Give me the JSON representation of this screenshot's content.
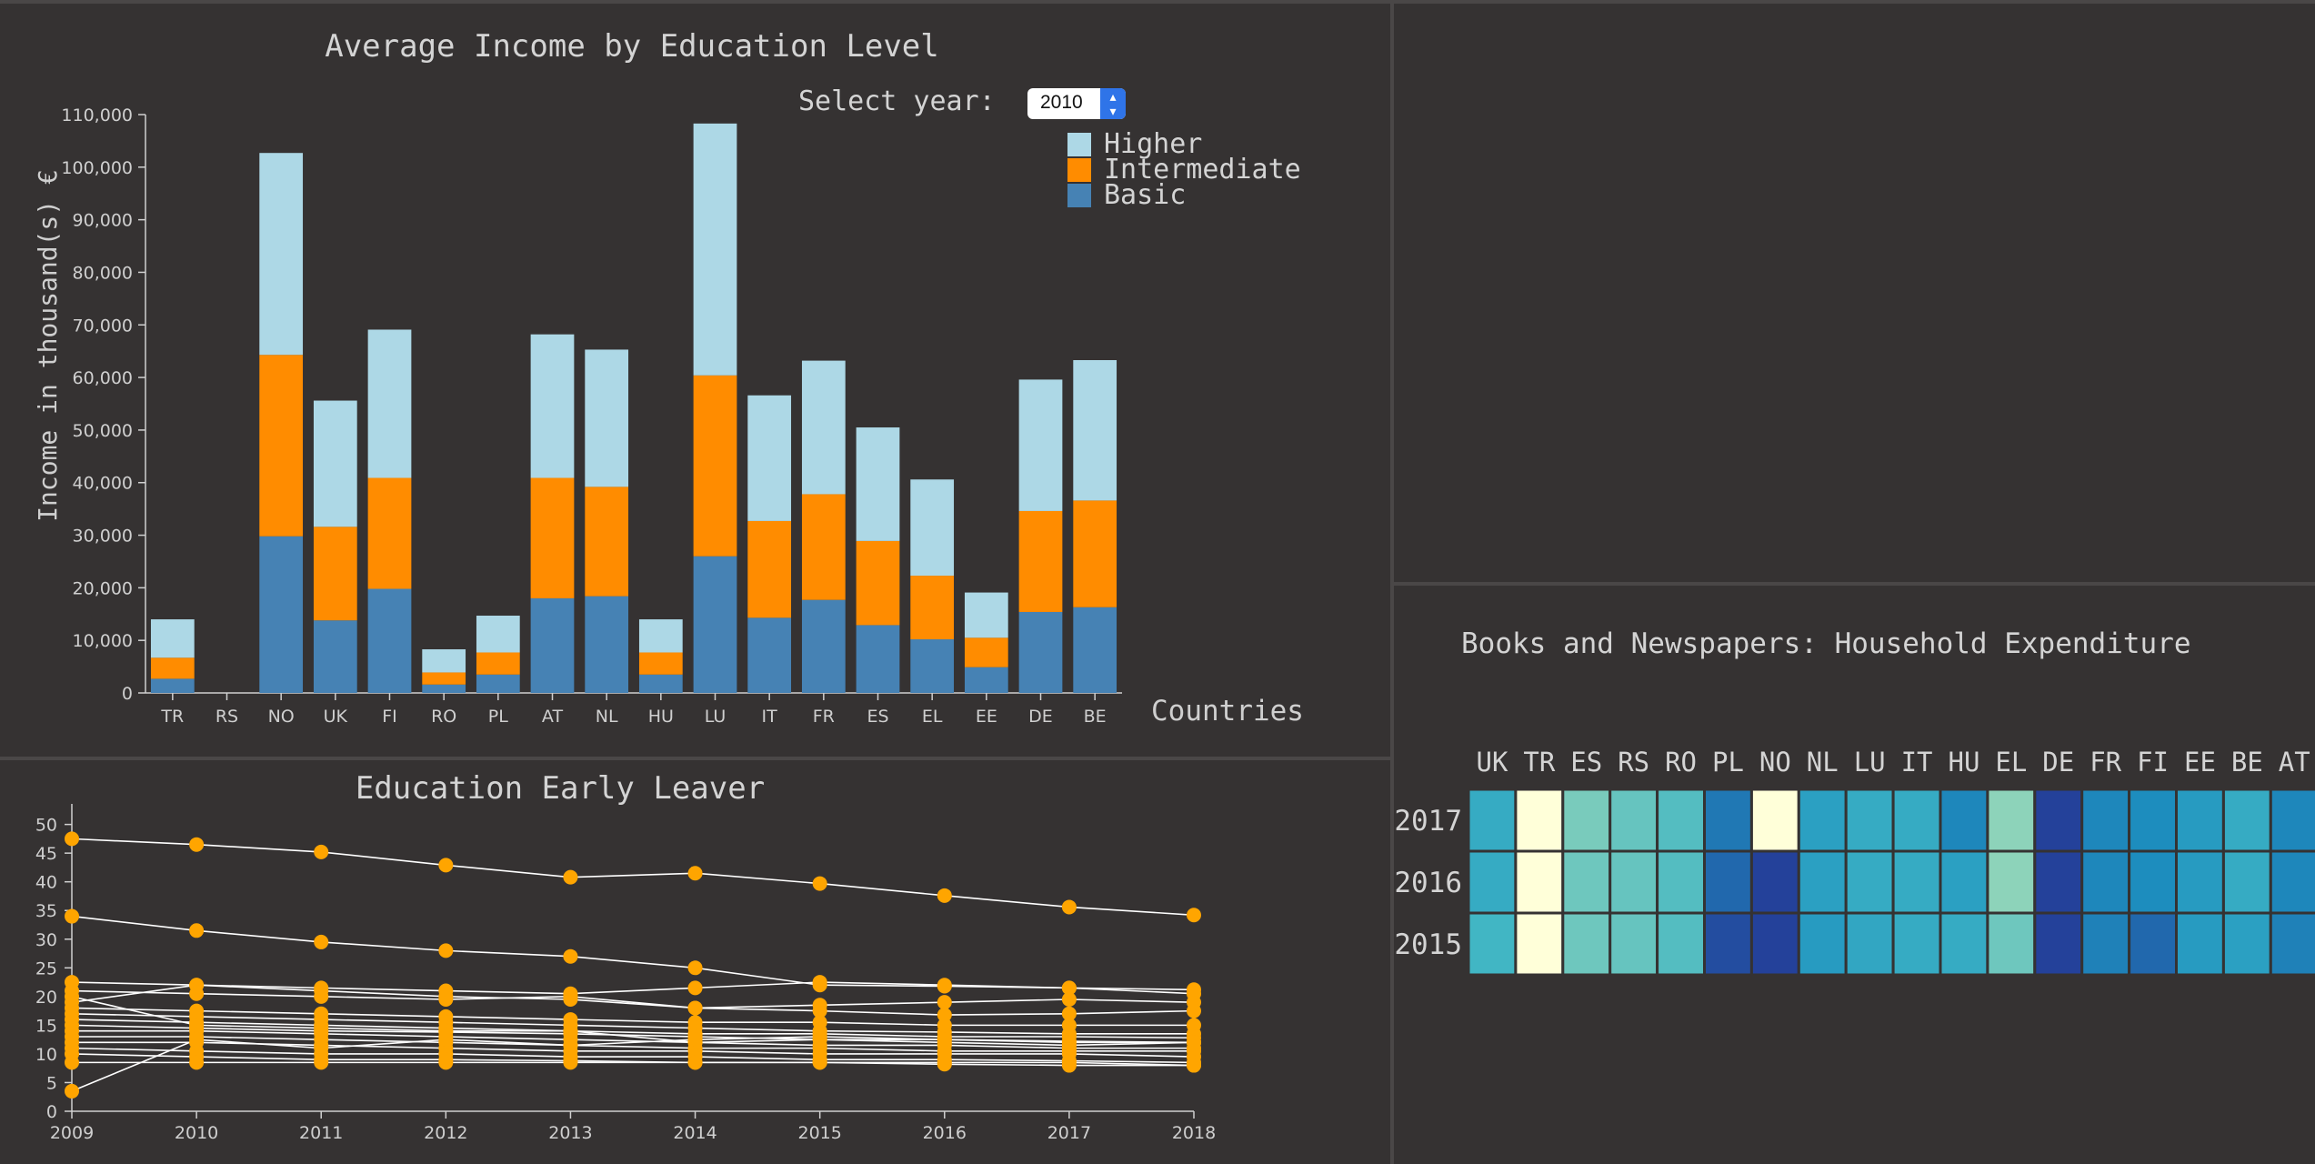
{
  "income_panel": {
    "select_label": "Select year:",
    "selected_year": "2010"
  },
  "early_panel": {},
  "books_panel": {},
  "colors": {
    "higher": "#add8e6",
    "intermediate": "#ff8c00",
    "basic": "#4682b4",
    "line": "#ffffff",
    "dot": "#ffa500"
  },
  "chart_data": [
    {
      "type": "bar",
      "stacked": true,
      "title": "Average Income by Education Level",
      "xlabel": "Countries",
      "ylabel": "Income in thousand(s) €",
      "ylim": [
        0,
        110000
      ],
      "yticks": [
        0,
        10000,
        20000,
        30000,
        40000,
        50000,
        60000,
        70000,
        80000,
        90000,
        100000,
        110000
      ],
      "ytick_labels": [
        "0",
        "10,000",
        "20,000",
        "30,000",
        "40,000",
        "50,000",
        "60,000",
        "70,000",
        "80,000",
        "90,000",
        "100,000",
        "110,000"
      ],
      "legend_position": "top-right",
      "categories": [
        "TR",
        "RS",
        "NO",
        "UK",
        "FI",
        "RO",
        "PL",
        "AT",
        "NL",
        "HU",
        "LU",
        "IT",
        "FR",
        "ES",
        "EL",
        "EE",
        "DE",
        "BE"
      ],
      "series": [
        {
          "name": "Basic",
          "values": [
            2700,
            0,
            29800,
            13800,
            19800,
            1600,
            3500,
            18000,
            18400,
            3500,
            26000,
            14300,
            17700,
            12900,
            10200,
            4900,
            15400,
            16300
          ]
        },
        {
          "name": "Intermediate",
          "values": [
            4000,
            0,
            34500,
            17800,
            21100,
            2300,
            4200,
            22900,
            20800,
            4200,
            34400,
            18400,
            20100,
            16000,
            12100,
            5600,
            19200,
            20300
          ]
        },
        {
          "name": "Higher",
          "values": [
            7300,
            0,
            38400,
            24000,
            28200,
            4400,
            7000,
            27300,
            26100,
            6300,
            47900,
            23900,
            25400,
            21600,
            18300,
            8600,
            25000,
            26700
          ]
        }
      ]
    },
    {
      "type": "line",
      "title": "Education Early Leaver",
      "xlabel": "",
      "ylabel": "",
      "ylim": [
        0,
        52
      ],
      "yticks": [
        0,
        5,
        10,
        15,
        20,
        25,
        30,
        35,
        40,
        45,
        50
      ],
      "x": [
        2009,
        2010,
        2011,
        2012,
        2013,
        2014,
        2015,
        2016,
        2017,
        2018
      ],
      "series": [
        {
          "values": [
            47.5,
            46.5,
            45.2,
            42.9,
            40.8,
            41.5,
            39.7,
            37.6,
            35.6,
            34.2
          ]
        },
        {
          "values": [
            34.0,
            31.5,
            29.5,
            28.0,
            27.0,
            25.0,
            22.0,
            21.8,
            21.5,
            21.2
          ]
        },
        {
          "values": [
            22.5,
            22.0,
            21.5,
            21.0,
            20.5,
            21.5,
            22.5,
            22.0,
            21.5,
            20.5
          ]
        },
        {
          "values": [
            21.0,
            20.5,
            20.0,
            19.5,
            20.0,
            18.0,
            17.5,
            16.8,
            17.0,
            17.5
          ]
        },
        {
          "values": [
            19.0,
            22.0,
            21.0,
            20.0,
            19.5,
            18.0,
            18.5,
            19.0,
            19.5,
            19.0
          ]
        },
        {
          "values": [
            18.0,
            17.5,
            17.0,
            16.5,
            16.0,
            15.5,
            15.5,
            15.0,
            15.0,
            15.0
          ]
        },
        {
          "values": [
            17.0,
            16.5,
            16.0,
            15.5,
            15.0,
            14.5,
            14.0,
            13.8,
            13.5,
            13.5
          ]
        },
        {
          "values": [
            16.0,
            15.5,
            15.0,
            14.5,
            14.0,
            13.5,
            13.5,
            13.0,
            13.0,
            12.8
          ]
        },
        {
          "values": [
            15.0,
            14.5,
            14.0,
            13.8,
            13.5,
            13.0,
            12.5,
            12.5,
            12.2,
            12.0
          ]
        },
        {
          "values": [
            14.0,
            14.0,
            13.5,
            13.0,
            12.5,
            12.0,
            11.5,
            11.5,
            11.0,
            11.0
          ]
        },
        {
          "values": [
            13.0,
            13.0,
            12.5,
            12.0,
            11.5,
            11.0,
            11.0,
            10.5,
            10.5,
            10.5
          ]
        },
        {
          "values": [
            12.0,
            12.0,
            11.5,
            11.0,
            10.5,
            10.5,
            10.0,
            10.0,
            10.0,
            9.5
          ]
        },
        {
          "values": [
            11.0,
            10.5,
            10.0,
            10.0,
            9.5,
            9.5,
            9.0,
            9.0,
            8.8,
            8.5
          ]
        },
        {
          "values": [
            10.0,
            9.5,
            9.0,
            9.0,
            8.8,
            8.5,
            8.5,
            8.2,
            8.0,
            8.0
          ]
        },
        {
          "values": [
            8.5,
            8.5,
            8.5,
            8.5,
            8.5,
            8.5,
            8.5,
            8.5,
            8.5,
            8.0
          ]
        },
        {
          "values": [
            20.0,
            15.0,
            14.5,
            14.0,
            14.0,
            12.0,
            12.5,
            12.0,
            11.5,
            12.0
          ]
        },
        {
          "values": [
            3.5,
            12.5,
            11.0,
            12.5,
            11.5,
            12.5,
            13.0,
            12.5,
            12.0,
            12.0
          ]
        }
      ]
    },
    {
      "type": "heatmap",
      "title": "Books and Newspapers: Household Expenditure",
      "columns": [
        "UK",
        "TR",
        "ES",
        "RS",
        "RO",
        "PL",
        "NO",
        "NL",
        "LU",
        "IT",
        "HU",
        "EL",
        "DE",
        "FR",
        "FI",
        "EE",
        "BE",
        "AT"
      ],
      "rows": [
        "2017",
        "2016",
        "2015"
      ],
      "values": [
        [
          0.55,
          0.0,
          0.35,
          0.4,
          0.45,
          0.75,
          0.0,
          0.6,
          0.55,
          0.55,
          0.7,
          0.3,
          0.95,
          0.7,
          0.68,
          0.62,
          0.55,
          0.7
        ],
        [
          0.55,
          0.0,
          0.38,
          0.4,
          0.45,
          0.8,
          0.95,
          0.6,
          0.55,
          0.55,
          0.6,
          0.3,
          0.95,
          0.7,
          0.68,
          0.62,
          0.55,
          0.7
        ],
        [
          0.5,
          0.0,
          0.38,
          0.4,
          0.45,
          0.9,
          0.95,
          0.62,
          0.57,
          0.55,
          0.55,
          0.38,
          0.95,
          0.72,
          0.8,
          0.62,
          0.6,
          0.72
        ]
      ]
    }
  ]
}
